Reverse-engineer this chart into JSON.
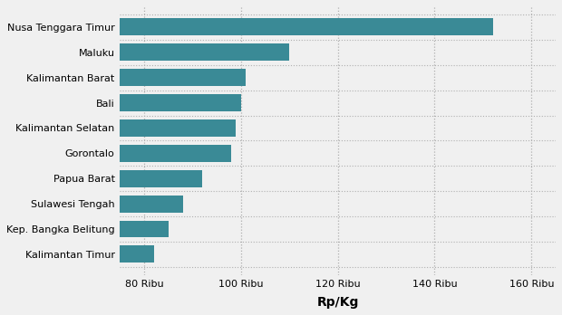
{
  "categories": [
    "Kalimantan Timur",
    "Kep. Bangka Belitung",
    "Sulawesi Tengah",
    "Papua Barat",
    "Gorontalo",
    "Kalimantan Selatan",
    "Bali",
    "Kalimantan Barat",
    "Maluku",
    "Nusa Tenggara Timur"
  ],
  "values": [
    82000,
    85000,
    88000,
    92000,
    98000,
    99000,
    100000,
    101000,
    110000,
    152000
  ],
  "bar_color": "#3a8a96",
  "background_color": "#f0f0f0",
  "xlabel": "Rp/Kg",
  "xlim_min": 75000,
  "xlim_max": 165000,
  "xticks": [
    80000,
    100000,
    120000,
    140000,
    160000
  ],
  "xtick_labels": [
    "80 Ribu",
    "100 Ribu",
    "120 Ribu",
    "140 Ribu",
    "160 Ribu"
  ],
  "xlabel_fontsize": 10,
  "tick_fontsize": 8.0,
  "label_fontsize": 8.0
}
